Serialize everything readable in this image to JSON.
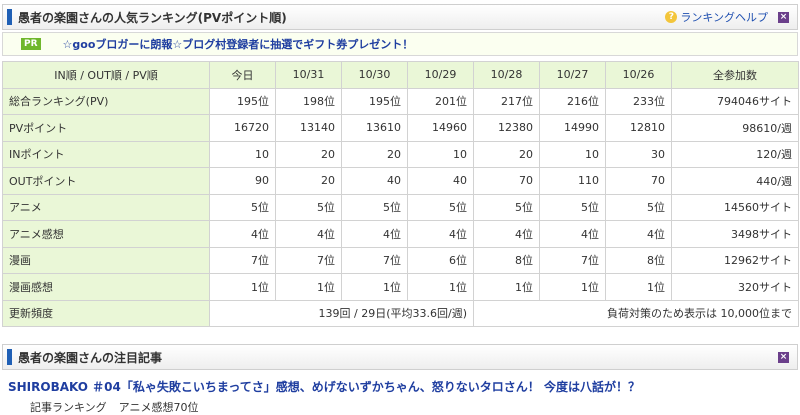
{
  "header": {
    "title": "愚者の楽園さんの人気ランキング(PVポイント順)",
    "help_label": "ランキングヘルプ",
    "help_icon": "question-icon",
    "close_icon": "close-icon"
  },
  "pr": {
    "badge": "PR",
    "text": "☆gooブロガーに朗報☆ブログ村登録者に抽選でギフト券プレゼント！"
  },
  "table": {
    "sort_label": "IN順 / OUT順 / PV順",
    "columns": [
      "今日",
      "10/31",
      "10/30",
      "10/29",
      "10/28",
      "10/27",
      "10/26",
      "全参加数"
    ],
    "rows": [
      {
        "label": "総合ランキング(PV)",
        "values": [
          "195位",
          "198位",
          "195位",
          "201位",
          "217位",
          "216位",
          "233位"
        ],
        "total": "794046サイト"
      },
      {
        "label": "PVポイント",
        "values": [
          "16720",
          "13140",
          "13610",
          "14960",
          "12380",
          "14990",
          "12810"
        ],
        "total": "98610/週"
      },
      {
        "label": "INポイント",
        "values": [
          "10",
          "20",
          "20",
          "10",
          "20",
          "10",
          "30"
        ],
        "total": "120/週"
      },
      {
        "label": "OUTポイント",
        "values": [
          "90",
          "20",
          "40",
          "40",
          "70",
          "110",
          "70"
        ],
        "total": "440/週"
      },
      {
        "label": "アニメ",
        "values": [
          "5位",
          "5位",
          "5位",
          "5位",
          "5位",
          "5位",
          "5位"
        ],
        "total": "14560サイト"
      },
      {
        "label": "アニメ感想",
        "values": [
          "4位",
          "4位",
          "4位",
          "4位",
          "4位",
          "4位",
          "4位"
        ],
        "total": "3498サイト"
      },
      {
        "label": "漫画",
        "values": [
          "7位",
          "7位",
          "7位",
          "6位",
          "8位",
          "7位",
          "8位"
        ],
        "total": "12962サイト"
      },
      {
        "label": "漫画感想",
        "values": [
          "1位",
          "1位",
          "1位",
          "1位",
          "1位",
          "1位",
          "1位"
        ],
        "total": "320サイト"
      }
    ],
    "freq": {
      "label": "更新頻度",
      "value": "139回 / 29日(平均33.6回/週)",
      "note": "負荷対策のため表示は 10,000位まで"
    }
  },
  "section2": {
    "title": "愚者の楽園さんの注目記事",
    "close_icon": "close-icon",
    "article_title": "SHIROBAKO ＃04「私ゃ失敗こいちまってさ」感想、めげないずかちゃん、怒りないタロさん！ 今度は八話が！？",
    "article_rank_label": "記事ランキング",
    "article_rank_value": "アニメ感想70位"
  }
}
